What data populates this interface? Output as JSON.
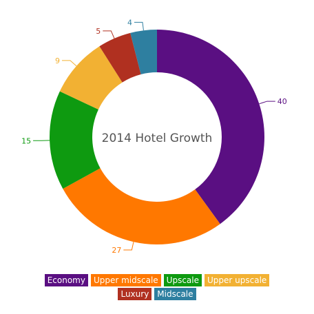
{
  "chart_data": {
    "type": "pie",
    "title": "2014 Hotel Growth",
    "categories": [
      "Economy",
      "Upper midscale",
      "Upscale",
      "Upper upscale",
      "Luxury",
      "Midscale"
    ],
    "values": [
      40,
      27,
      15,
      9,
      5,
      4
    ],
    "colors": [
      "#5a0f82",
      "#ff7800",
      "#0e9a10",
      "#f2b133",
      "#b03020",
      "#2e7fa0"
    ],
    "legend_position": "bottom",
    "donut": true
  }
}
